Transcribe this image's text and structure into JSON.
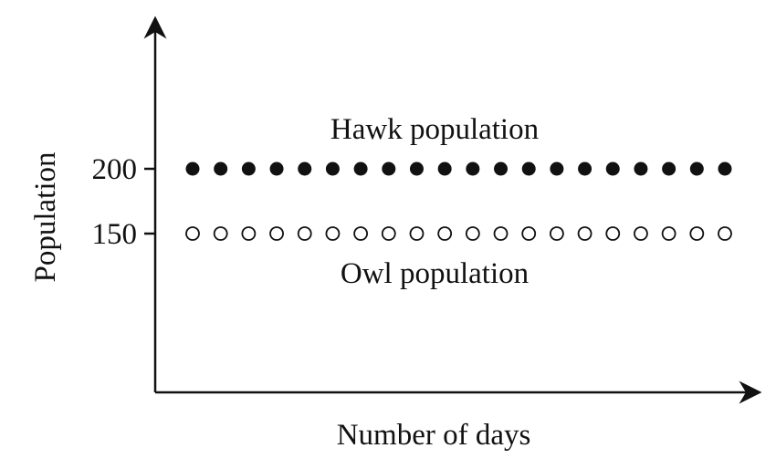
{
  "chart_data": {
    "type": "scatter",
    "title": "",
    "xlabel": "Number of days",
    "ylabel": "Population",
    "yticks": [
      150,
      200
    ],
    "xticks": [],
    "grid": false,
    "series": [
      {
        "name": "Hawk population",
        "marker": "filled-circle",
        "color": "#111111",
        "x": [
          1,
          2,
          3,
          4,
          5,
          6,
          7,
          8,
          9,
          10,
          11,
          12,
          13,
          14,
          15,
          16,
          17,
          18,
          19,
          20
        ],
        "y": [
          200,
          200,
          200,
          200,
          200,
          200,
          200,
          200,
          200,
          200,
          200,
          200,
          200,
          200,
          200,
          200,
          200,
          200,
          200,
          200
        ]
      },
      {
        "name": "Owl population",
        "marker": "open-circle",
        "color": "#111111",
        "x": [
          1,
          2,
          3,
          4,
          5,
          6,
          7,
          8,
          9,
          10,
          11,
          12,
          13,
          14,
          15,
          16,
          17,
          18,
          19,
          20
        ],
        "y": [
          150,
          150,
          150,
          150,
          150,
          150,
          150,
          150,
          150,
          150,
          150,
          150,
          150,
          150,
          150,
          150,
          150,
          150,
          150,
          150
        ]
      }
    ]
  }
}
